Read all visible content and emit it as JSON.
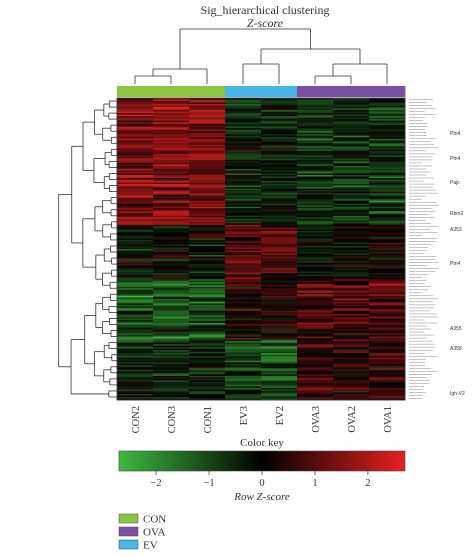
{
  "chart_data": {
    "type": "heatmap",
    "title": "Sig_hierarchical clustering",
    "subtitle": "Z-score",
    "columns": [
      "CON2",
      "CON3",
      "CON1",
      "EV3",
      "EV2",
      "OVA3",
      "OVA2",
      "OVA1"
    ],
    "column_groups": [
      "CON",
      "CON",
      "CON",
      "EV",
      "EV",
      "OVA",
      "OVA",
      "OVA"
    ],
    "row_count": 200,
    "color_scale": {
      "low": "#3dbb3d",
      "mid": "#000000",
      "high": "#e82020",
      "range": [
        -2.7,
        2.7
      ],
      "ticks": [
        -2,
        -1,
        0,
        1,
        2
      ],
      "tick_labels": [
        "−2",
        "−1",
        "0",
        "1",
        "2"
      ]
    },
    "color_key_title": "Color key",
    "color_key_xlabel": "Row Z-score",
    "legend": [
      {
        "label": "CON",
        "color": "#8cc63f"
      },
      {
        "label": "OVA",
        "color": "#7b4fa5"
      },
      {
        "label": "EV",
        "color": "#45b8e9"
      }
    ],
    "gene_labels_visible": [
      "Ptn4",
      "Ptn4",
      "Pajc",
      "Rbm2",
      "A353",
      "Ptn4",
      "A355",
      "A358",
      "Igh-V2"
    ]
  }
}
